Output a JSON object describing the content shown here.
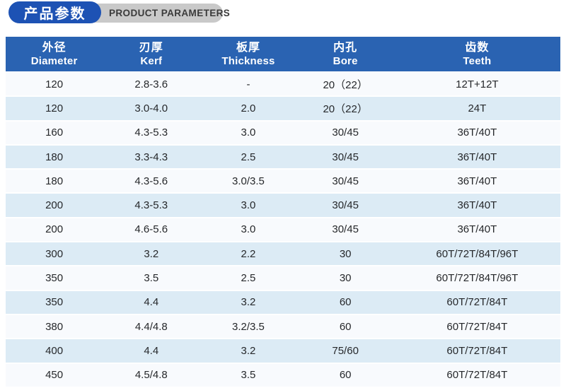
{
  "section_header": {
    "title_cn": "产品参数",
    "title_en": "PRODUCT PARAMETERS"
  },
  "table": {
    "columns": [
      {
        "cn": "外径",
        "en": "Diameter"
      },
      {
        "cn": "刃厚",
        "en": "Kerf"
      },
      {
        "cn": "板厚",
        "en": "Thickness"
      },
      {
        "cn": "内孔",
        "en": "Bore"
      },
      {
        "cn": "齿数",
        "en": "Teeth"
      }
    ],
    "rows": [
      [
        "120",
        "2.8-3.6",
        "-",
        "20（22）",
        "12T+12T"
      ],
      [
        "120",
        "3.0-4.0",
        "2.0",
        "20（22）",
        "24T"
      ],
      [
        "160",
        "4.3-5.3",
        "3.0",
        "30/45",
        "36T/40T"
      ],
      [
        "180",
        "3.3-4.3",
        "2.5",
        "30/45",
        "36T/40T"
      ],
      [
        "180",
        "4.3-5.6",
        "3.0/3.5",
        "30/45",
        "36T/40T"
      ],
      [
        "200",
        "4.3-5.3",
        "3.0",
        "30/45",
        "36T/40T"
      ],
      [
        "200",
        "4.6-5.6",
        "3.0",
        "30/45",
        "36T/40T"
      ],
      [
        "300",
        "3.2",
        "2.2",
        "30",
        "60T/72T/84T/96T"
      ],
      [
        "350",
        "3.5",
        "2.5",
        "30",
        "60T/72T/84T/96T"
      ],
      [
        "350",
        "4.4",
        "3.2",
        "60",
        "60T/72T/84T"
      ],
      [
        "380",
        "4.4/4.8",
        "3.2/3.5",
        "60",
        "60T/72T/84T"
      ],
      [
        "400",
        "4.4",
        "3.2",
        "75/60",
        "60T/72T/84T"
      ],
      [
        "450",
        "4.5/4.8",
        "3.5",
        "60",
        "60T/72T/84T"
      ]
    ]
  },
  "colors": {
    "header_blue": "#2a63b2",
    "pill_blue": "#1d52b4",
    "pill_gray": "#c9c9c9",
    "row_light": "#f8fafd",
    "row_shaded": "#dcebf5",
    "text_dark": "#26282b"
  }
}
